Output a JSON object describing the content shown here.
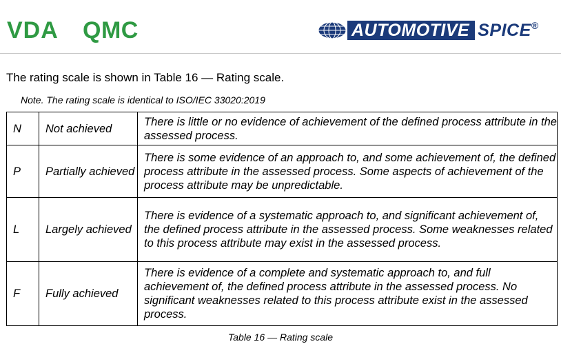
{
  "header": {
    "logo_vda": "VDA",
    "logo_qmc": "QMC",
    "logo_aspice_main": "AUTOMOTIVE",
    "logo_aspice_spice": "SPICE",
    "logo_aspice_reg": "®"
  },
  "intro_text": "The rating scale is shown in Table 16 — Rating scale.",
  "note_text": "Note. The rating scale is identical to ISO/IEC 33020:2019",
  "table": {
    "rows": [
      {
        "code": "N",
        "label": "Not achieved",
        "description": "There is little or no evidence of achievement of the defined process attribute in the assessed process."
      },
      {
        "code": "P",
        "label": "Partially achieved",
        "description": "There is some evidence of an approach to, and some achievement of, the defined process attribute in the assessed process. Some aspects of achievement of the process attribute may be unpredictable."
      },
      {
        "code": "L",
        "label": "Largely achieved",
        "description": "There is evidence of a systematic approach to, and significant achievement of, the defined process attribute in the assessed process. Some weaknesses related to this process attribute may exist in the assessed process."
      },
      {
        "code": "F",
        "label": "Fully achieved",
        "description": "There is evidence of a complete and systematic approach to, and full achievement of, the defined process attribute in the assessed process. No significant weaknesses related to this process attribute exist in the assessed process."
      }
    ]
  },
  "caption": "Table 16 — Rating scale",
  "colors": {
    "vda_green": "#2f9a43",
    "aspice_blue": "#1b3a7a"
  }
}
